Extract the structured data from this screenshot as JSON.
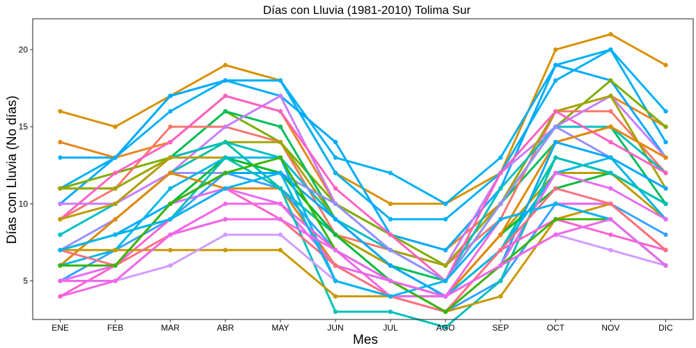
{
  "chart_data": {
    "type": "line",
    "title": "Días con Lluvia (1981-2010)  Tolima Sur",
    "xlabel": "Mes",
    "ylabel": "Días con Lluvia (No días)",
    "categories": [
      "ENE",
      "FEB",
      "MAR",
      "ABR",
      "MAY",
      "JUN",
      "JUL",
      "AGO",
      "SEP",
      "OCT",
      "NOV",
      "DIC"
    ],
    "ylim": [
      2.5,
      22
    ],
    "yticks": [
      5,
      10,
      15,
      20
    ],
    "grid": false,
    "legend": "none",
    "series": [
      {
        "color": "#D89000",
        "values": [
          16,
          15,
          17,
          19,
          18,
          12,
          10,
          10,
          12,
          20,
          21,
          19
        ]
      },
      {
        "color": "#00B0F6",
        "values": [
          13,
          13,
          17,
          18,
          18,
          13,
          12,
          10,
          13,
          19,
          20,
          16
        ]
      },
      {
        "color": "#00B0F6",
        "values": [
          11,
          13,
          16,
          18,
          18,
          12,
          9,
          9,
          12,
          18,
          20,
          14
        ]
      },
      {
        "color": "#E7861B",
        "values": [
          14,
          13,
          14,
          17,
          16,
          10,
          8,
          7,
          10,
          16,
          17,
          15
        ]
      },
      {
        "color": "#00ABFD",
        "values": [
          10,
          13,
          17,
          18,
          17,
          14,
          8,
          7,
          11,
          19,
          18,
          13
        ]
      },
      {
        "color": "#7CAE00",
        "values": [
          11,
          12,
          13,
          16,
          14,
          10,
          8,
          6,
          10,
          15,
          18,
          15
        ]
      },
      {
        "color": "#00BD5C",
        "values": [
          11,
          11,
          13,
          16,
          15,
          9,
          6,
          5,
          10,
          14,
          15,
          10
        ]
      },
      {
        "color": "#F8766D",
        "values": [
          9,
          11,
          15,
          15,
          14,
          8,
          7,
          6,
          9,
          16,
          16,
          12
        ]
      },
      {
        "color": "#C77CFF",
        "values": [
          10,
          10,
          12,
          15,
          17,
          10,
          7,
          6,
          12,
          15,
          17,
          13
        ]
      },
      {
        "color": "#A3A500",
        "values": [
          11,
          11,
          13,
          14,
          14,
          9,
          7,
          6,
          10,
          16,
          17,
          11
        ]
      },
      {
        "color": "#00BFC4",
        "values": [
          8,
          10,
          13,
          14,
          13,
          9,
          7,
          5,
          11,
          15,
          15,
          12
        ]
      },
      {
        "color": "#FF61C3",
        "values": [
          9,
          12,
          14,
          17,
          16,
          11,
          8,
          5,
          12,
          16,
          14,
          12
        ]
      },
      {
        "color": "#9590FF",
        "values": [
          7,
          9,
          12,
          12,
          12,
          10,
          7,
          5,
          10,
          15,
          13,
          9
        ]
      },
      {
        "color": "#00C1A3",
        "values": [
          6,
          9,
          12,
          14,
          11,
          8,
          6,
          4,
          7,
          13,
          12,
          10
        ]
      },
      {
        "color": "#BB9D00",
        "values": [
          9,
          10,
          13,
          13,
          12,
          8,
          6,
          4,
          8,
          12,
          12,
          9
        ]
      },
      {
        "color": "#00BA38",
        "values": [
          6,
          6,
          10,
          13,
          12,
          8,
          5,
          4,
          8,
          11,
          12,
          10
        ]
      },
      {
        "color": "#E58700",
        "values": [
          6,
          9,
          12,
          11,
          11,
          6,
          5,
          4,
          8,
          14,
          15,
          13
        ]
      },
      {
        "color": "#00A9FF",
        "values": [
          7,
          8,
          10,
          12,
          12,
          9,
          6,
          4,
          6,
          14,
          13,
          11
        ]
      },
      {
        "color": "#35A2FF",
        "values": [
          5,
          7,
          9,
          12,
          11,
          7,
          5,
          3,
          5,
          10,
          10,
          8
        ]
      },
      {
        "color": "#00B8E7",
        "values": [
          6,
          7,
          11,
          13,
          13,
          5,
          4,
          4,
          7,
          12,
          13,
          9
        ]
      },
      {
        "color": "#E76BF3",
        "values": [
          5,
          6,
          10,
          11,
          10,
          6,
          5,
          4,
          6,
          12,
          11,
          9
        ]
      },
      {
        "color": "#F166E8",
        "values": [
          4,
          5,
          8,
          10,
          10,
          7,
          4,
          4,
          9,
          10,
          10,
          7
        ]
      },
      {
        "color": "#00C0B8",
        "values": [
          7,
          8,
          9,
          13,
          11,
          3,
          3,
          2,
          5,
          13,
          12,
          10
        ]
      },
      {
        "color": "#FD61D1",
        "values": [
          4,
          6,
          9,
          11,
          9,
          6,
          4,
          3,
          7,
          9,
          8,
          7
        ]
      },
      {
        "color": "#C99800",
        "values": [
          7,
          7,
          7,
          7,
          7,
          4,
          4,
          3,
          4,
          9,
          10,
          7
        ]
      },
      {
        "color": "#D19CFF",
        "values": [
          5,
          5,
          6,
          8,
          8,
          5,
          4,
          3,
          6,
          8,
          7,
          6
        ]
      },
      {
        "color": "#FC717F",
        "values": [
          7,
          6,
          8,
          9,
          9,
          6,
          4,
          3,
          7,
          11,
          10,
          7
        ]
      },
      {
        "color": "#39B600",
        "values": [
          6,
          6,
          10,
          12,
          13,
          7,
          5,
          3,
          6,
          9,
          9,
          6
        ]
      },
      {
        "color": "#00B4EF",
        "values": [
          7,
          8,
          9,
          11,
          12,
          5,
          4,
          5,
          9,
          10,
          9,
          6
        ]
      },
      {
        "color": "#EF67EB",
        "values": [
          5,
          5,
          8,
          9,
          9,
          7,
          5,
          4,
          6,
          8,
          9,
          6
        ]
      }
    ]
  }
}
